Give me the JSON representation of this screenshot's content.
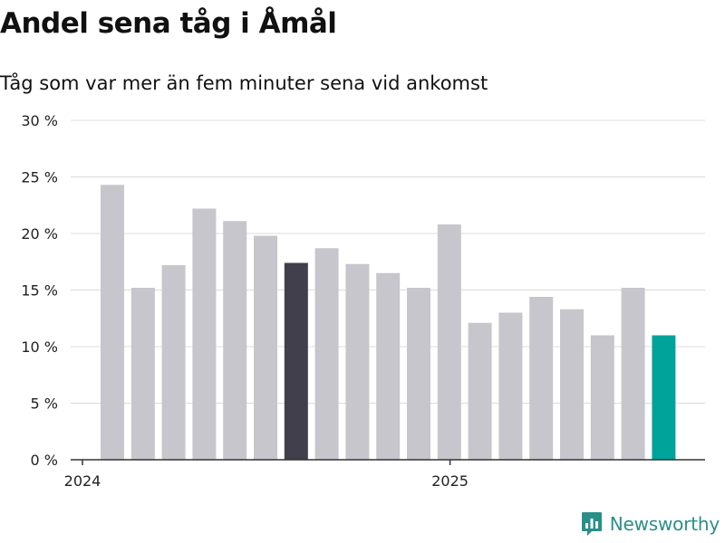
{
  "chart_data": {
    "type": "bar",
    "title": "Andel sena tåg i Åmål",
    "subtitle": "Tåg som var mer än fem minuter sena vid ankomst",
    "xlabel": "",
    "ylabel": "",
    "ylim": [
      0,
      30
    ],
    "y_ticks": [
      {
        "value": 0,
        "label": "0 %"
      },
      {
        "value": 5,
        "label": "5 %"
      },
      {
        "value": 10,
        "label": "10 %"
      },
      {
        "value": 15,
        "label": "15 %"
      },
      {
        "value": 20,
        "label": "20 %"
      },
      {
        "value": 25,
        "label": "25 %"
      },
      {
        "value": 30,
        "label": "30 %"
      }
    ],
    "x_ticks": [
      {
        "value": "2024-01",
        "label": "2024"
      },
      {
        "value": "2025-01",
        "label": "2025"
      }
    ],
    "grid": true,
    "categories": [
      "2024-01",
      "2024-02",
      "2024-03",
      "2024-04",
      "2024-05",
      "2024-06",
      "2024-07",
      "2024-08",
      "2024-09",
      "2024-10",
      "2024-11",
      "2024-12",
      "2025-01",
      "2025-02",
      "2025-03",
      "2025-04",
      "2025-05",
      "2025-06",
      "2025-07"
    ],
    "values": [
      24.3,
      15.2,
      17.2,
      22.2,
      21.1,
      19.8,
      17.4,
      18.7,
      17.3,
      16.5,
      15.2,
      20.8,
      12.1,
      13.0,
      14.4,
      13.3,
      11.0,
      15.2,
      11.0
    ],
    "colors": {
      "default": "#c7c6cc",
      "highlight_dark": "#403f4b",
      "highlight_latest": "#00a39a"
    },
    "highlights": {
      "2024-07": "highlight_dark",
      "2025-07": "highlight_latest"
    }
  },
  "brand": {
    "name": "Newsworthy",
    "icon": "newsworthy-logo-icon",
    "color": "#2a8f89"
  }
}
